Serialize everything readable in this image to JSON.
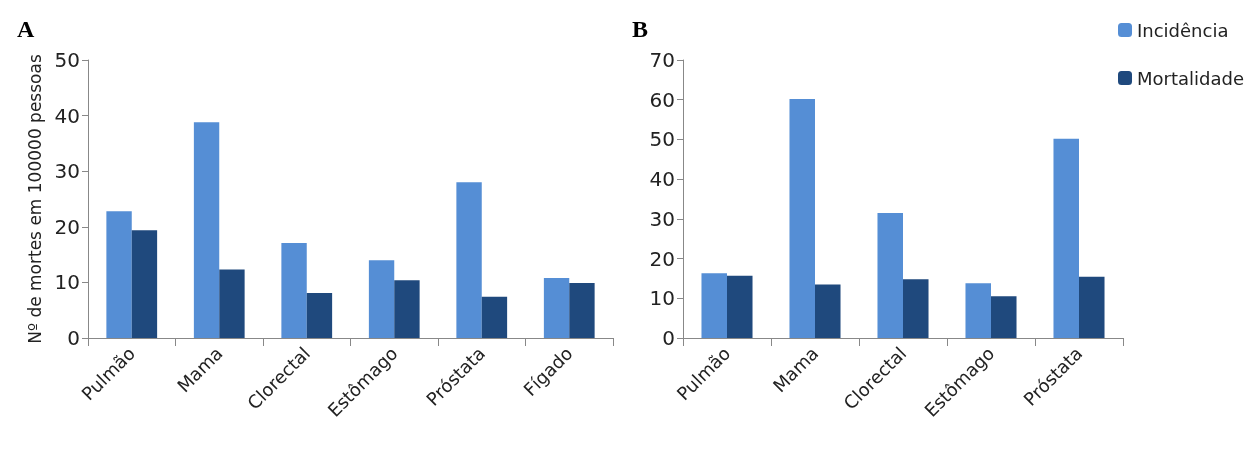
{
  "chart_data": [
    {
      "type": "bar",
      "title": "A",
      "ylabel": "Nº de mortes em 100000 pessoas",
      "categories": [
        "Pulmão",
        "Mama",
        "Clorectal",
        "Estômago",
        "Próstata",
        "Fígado"
      ],
      "series": [
        {
          "color": "#558ed5",
          "values": [
            22.8,
            38.8,
            17.1,
            14.0,
            28.0,
            10.8
          ]
        },
        {
          "color": "#1f497d",
          "values": [
            19.4,
            12.3,
            8.1,
            10.4,
            7.4,
            9.9
          ]
        }
      ],
      "ylim": [
        0,
        50
      ],
      "yticks": [
        0,
        10,
        20,
        30,
        40,
        50
      ],
      "grid": false,
      "legend": false
    },
    {
      "type": "bar",
      "title": "B",
      "categories": [
        "Pulmão",
        "Mama",
        "Clorectal",
        "Estômago",
        "Próstata"
      ],
      "series": [
        {
          "name": "Incidência",
          "color": "#558ed5",
          "values": [
            16.3,
            60.2,
            31.5,
            13.8,
            50.2
          ]
        },
        {
          "name": "Mortalidade",
          "color": "#1f497d",
          "values": [
            15.7,
            13.5,
            14.8,
            10.5,
            15.4
          ]
        }
      ],
      "ylim": [
        0,
        70
      ],
      "yticks": [
        0,
        10,
        20,
        30,
        40,
        50,
        60,
        70
      ],
      "grid": false,
      "legend": "top right"
    }
  ]
}
